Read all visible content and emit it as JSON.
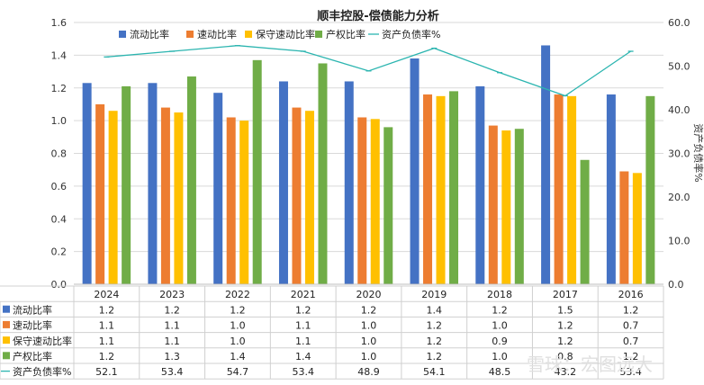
{
  "chart_data": {
    "type": "bar",
    "title": "顺丰控股-偿债能力分析",
    "categories": [
      "2024",
      "2023",
      "2022",
      "2021",
      "2020",
      "2019",
      "2018",
      "2017",
      "2016"
    ],
    "ylim": [
      0,
      1.6
    ],
    "y_ticks": [
      "0.0",
      "0.2",
      "0.4",
      "0.6",
      "0.8",
      "1.0",
      "1.2",
      "1.4",
      "1.6"
    ],
    "y2lim": [
      0,
      60
    ],
    "y2_ticks": [
      "0.0",
      "10.0",
      "20.0",
      "30.0",
      "40.0",
      "50.0",
      "60.0"
    ],
    "y2label": "资产负债率%",
    "legend_position": "top",
    "series": [
      {
        "name": "流动比率",
        "type": "bar",
        "color": "#4472C4",
        "values": [
          1.23,
          1.23,
          1.17,
          1.24,
          1.24,
          1.38,
          1.21,
          1.46,
          1.16
        ],
        "labels": [
          "1.2",
          "1.2",
          "1.2",
          "1.2",
          "1.2",
          "1.4",
          "1.2",
          "1.5",
          "1.2"
        ]
      },
      {
        "name": "速动比率",
        "type": "bar",
        "color": "#ED7D31",
        "values": [
          1.1,
          1.08,
          1.02,
          1.08,
          1.02,
          1.16,
          0.97,
          1.16,
          0.69
        ],
        "labels": [
          "1.1",
          "1.1",
          "1.0",
          "1.1",
          "1.0",
          "1.2",
          "1.0",
          "1.2",
          "0.7"
        ]
      },
      {
        "name": "保守速动比率",
        "type": "bar",
        "color": "#FFC000",
        "values": [
          1.06,
          1.05,
          1.0,
          1.06,
          1.01,
          1.15,
          0.94,
          1.15,
          0.68
        ],
        "labels": [
          "1.1",
          "1.1",
          "1.0",
          "1.1",
          "1.0",
          "1.2",
          "0.9",
          "1.2",
          "0.7"
        ]
      },
      {
        "name": "产权比率",
        "type": "bar",
        "color": "#70AD47",
        "values": [
          1.21,
          1.27,
          1.37,
          1.35,
          0.96,
          1.18,
          0.95,
          0.76,
          1.15
        ],
        "labels": [
          "1.2",
          "1.3",
          "1.4",
          "1.4",
          "1.0",
          "1.2",
          "1.0",
          "0.8",
          "1.2"
        ]
      },
      {
        "name": "资产负债率%",
        "type": "line",
        "axis": "right",
        "color": "#2CB5B0",
        "values": [
          52.1,
          53.4,
          54.7,
          53.4,
          48.9,
          54.1,
          48.5,
          43.2,
          53.4
        ],
        "labels": [
          "52.1",
          "53.4",
          "54.7",
          "53.4",
          "48.9",
          "54.1",
          "48.5",
          "43.2",
          "53.4"
        ]
      }
    ]
  },
  "watermark": "雪球：宏图远大"
}
